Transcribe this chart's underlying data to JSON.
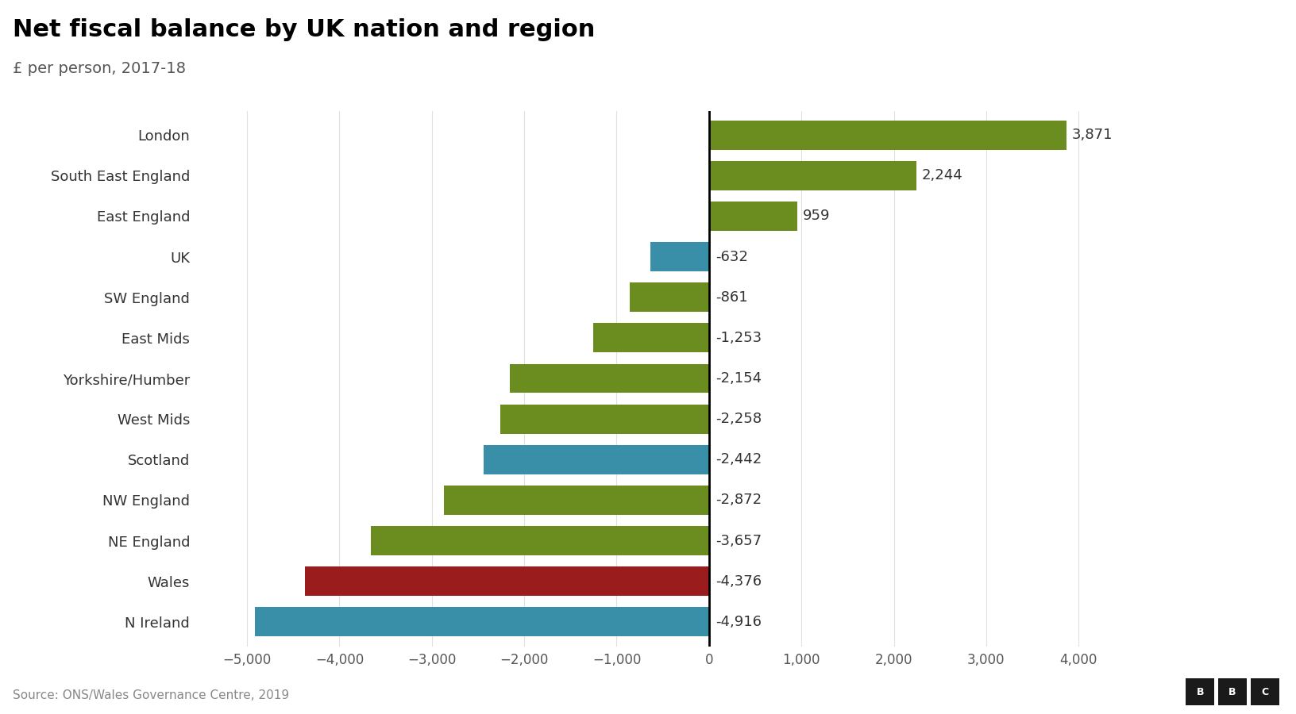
{
  "title": "Net fiscal balance by UK nation and region",
  "subtitle": "£ per person, 2017-18",
  "source": "Source: ONS/Wales Governance Centre, 2019",
  "categories": [
    "N Ireland",
    "Wales",
    "NE England",
    "NW England",
    "Scotland",
    "West Mids",
    "Yorkshire/Humber",
    "East Mids",
    "SW England",
    "UK",
    "East England",
    "South East England",
    "London"
  ],
  "values": [
    -4916,
    -4376,
    -3657,
    -2872,
    -2442,
    -2258,
    -2154,
    -1253,
    -861,
    -632,
    959,
    2244,
    3871
  ],
  "colors": [
    "#3a8fa8",
    "#9b1c1c",
    "#6b8c1e",
    "#6b8c1e",
    "#3a8fa8",
    "#6b8c1e",
    "#6b8c1e",
    "#6b8c1e",
    "#6b8c1e",
    "#3a8fa8",
    "#6b8c1e",
    "#6b8c1e",
    "#6b8c1e"
  ],
  "xlim": [
    -5500,
    4600
  ],
  "xticks": [
    -5000,
    -4000,
    -3000,
    -2000,
    -1000,
    0,
    1000,
    2000,
    3000,
    4000
  ],
  "xtick_labels": [
    "−5,000",
    "−4,000",
    "−3,000",
    "−2,000",
    "−1,000",
    "0",
    "1,000",
    "2,000",
    "3,000",
    "4,000"
  ],
  "bar_height": 0.72,
  "title_fontsize": 22,
  "subtitle_fontsize": 14,
  "label_fontsize": 13,
  "tick_fontsize": 12,
  "source_fontsize": 11,
  "value_fontsize": 13,
  "bg_color": "#ffffff",
  "zero_line_color": "#000000",
  "grid_color": "#e0e0e0",
  "label_color": "#333333",
  "tick_color": "#555555",
  "source_color": "#888888"
}
